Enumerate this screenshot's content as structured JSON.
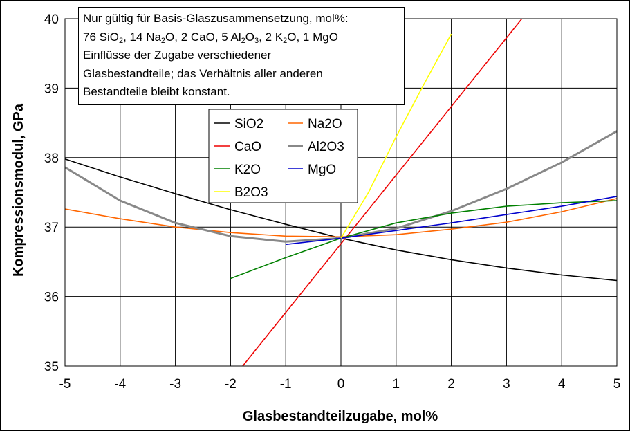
{
  "note": {
    "line1": "Nur gültig für Basis-Glaszusammensetzung, mol%:",
    "line2_parts": [
      "76 SiO",
      "2",
      ", 14 Na",
      "2",
      "O, 2 CaO, 5 Al",
      "2",
      "O",
      "3",
      ", 2 K",
      "2",
      "O, 1 MgO"
    ],
    "line3": "Einflüsse der Zugabe verschiedener",
    "line4": "Glasbestandteile; das Verhältnis aller anderen",
    "line5": "Bestandteile bleibt konstant."
  },
  "chart_data": {
    "type": "line",
    "xlabel": "Glasbestandteilzugabe, mol%",
    "ylabel": "Kompressionsmodul, GPa",
    "xlim": [
      -5,
      5
    ],
    "ylim": [
      35,
      40
    ],
    "xticks": [
      "-5",
      "-4",
      "-3",
      "-2",
      "-1",
      "0",
      "1",
      "2",
      "3",
      "4",
      "5"
    ],
    "yticks": [
      "35",
      "36",
      "37",
      "38",
      "39",
      "40"
    ],
    "grid": true,
    "legend_position": "upper-center",
    "series": [
      {
        "name": "SiO2",
        "color": "#000000",
        "x": [
          -5,
          -4,
          -3,
          -2,
          -1,
          0,
          1,
          2,
          3,
          4,
          5
        ],
        "y": [
          37.98,
          37.72,
          37.48,
          37.25,
          37.04,
          36.84,
          36.67,
          36.53,
          36.41,
          36.31,
          36.23
        ]
      },
      {
        "name": "Na2O",
        "color": "#ff6600",
        "x": [
          -5,
          -4,
          -3,
          -2,
          -1,
          0,
          1,
          2,
          3,
          4,
          5
        ],
        "y": [
          37.26,
          37.12,
          37.0,
          36.92,
          36.87,
          36.86,
          36.89,
          36.97,
          37.07,
          37.22,
          37.41
        ]
      },
      {
        "name": "CaO",
        "color": "#ee0000",
        "x": [
          -1.78,
          3.28
        ],
        "y": [
          35.0,
          40.0
        ]
      },
      {
        "name": "Al2O3",
        "color": "#888888",
        "x": [
          -5,
          -4,
          -3,
          -2,
          -1,
          0,
          1,
          2,
          3,
          4,
          5
        ],
        "y": [
          37.86,
          37.38,
          37.06,
          36.87,
          36.79,
          36.84,
          36.98,
          37.23,
          37.55,
          37.93,
          38.38
        ]
      },
      {
        "name": "K2O",
        "color": "#008000",
        "x": [
          -2,
          -1,
          0,
          1,
          2,
          3,
          4,
          5
        ],
        "y": [
          36.26,
          36.56,
          36.84,
          37.06,
          37.2,
          37.3,
          37.35,
          37.38
        ]
      },
      {
        "name": "MgO",
        "color": "#0000cc",
        "x": [
          -1,
          0,
          1,
          2,
          3,
          4,
          5
        ],
        "y": [
          36.75,
          36.84,
          36.95,
          37.06,
          37.18,
          37.3,
          37.44
        ]
      },
      {
        "name": "B2O3",
        "color": "#ffff00",
        "x": [
          0,
          0.5,
          1,
          1.5,
          2
        ],
        "y": [
          36.84,
          37.5,
          38.3,
          39.05,
          39.78
        ]
      }
    ]
  }
}
